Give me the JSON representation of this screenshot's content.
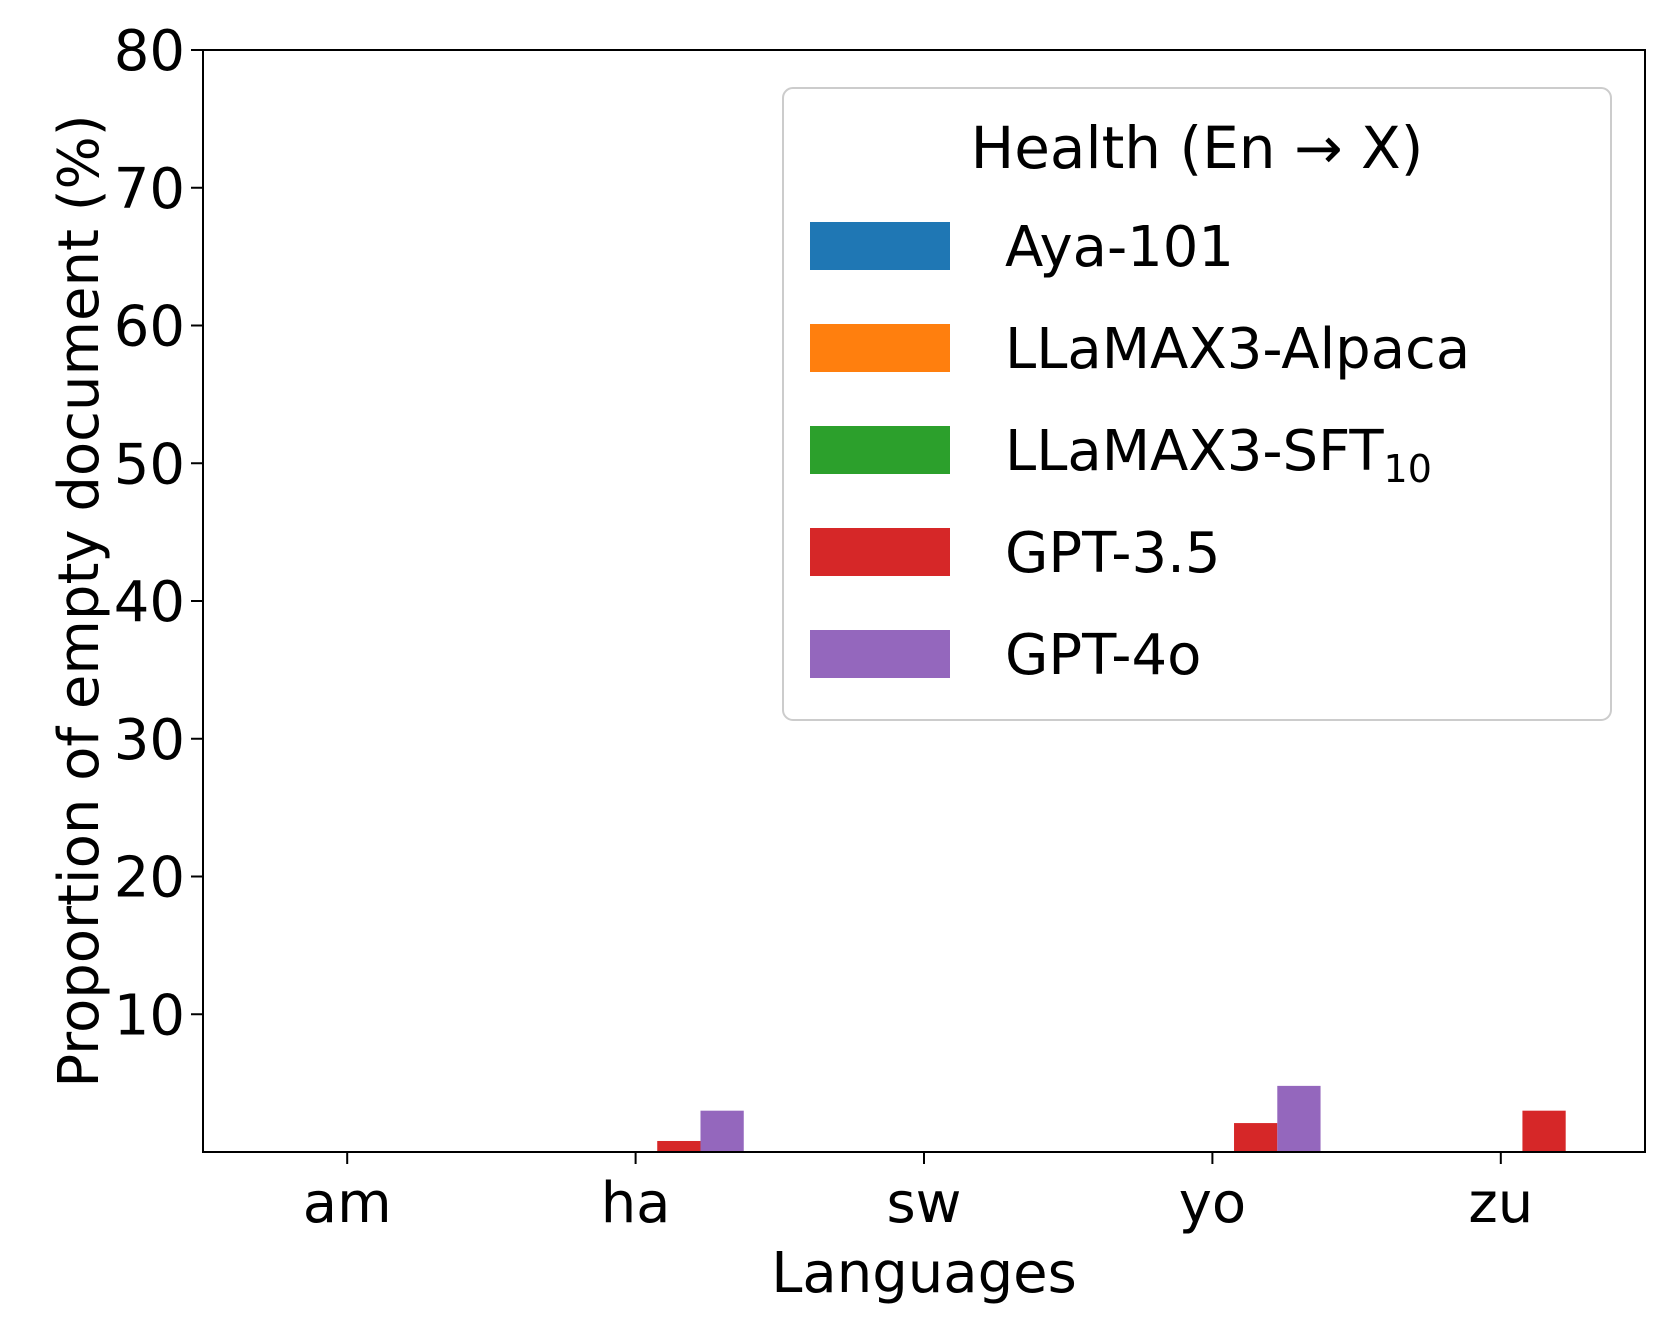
{
  "chart_data": {
    "type": "bar",
    "title": "",
    "xlabel": "Languages",
    "ylabel": "Proportion of empty document (%)",
    "ylim": [
      0,
      80
    ],
    "yticks": [
      10,
      20,
      30,
      40,
      50,
      60,
      70,
      80
    ],
    "categories": [
      "am",
      "ha",
      "sw",
      "yo",
      "zu"
    ],
    "grid": false,
    "legend": {
      "title": "Health (En → X)",
      "placement": "top-right"
    },
    "series": [
      {
        "name": "Aya-101",
        "label_main": "Aya-101",
        "label_sub": "",
        "color": "#1f77b4",
        "values": [
          0,
          0,
          0,
          0,
          0
        ]
      },
      {
        "name": "LLaMAX3-Alpaca",
        "label_main": "LLaMAX3-Alpaca",
        "label_sub": "",
        "color": "#ff7f0e",
        "values": [
          0,
          0,
          0,
          0,
          0
        ]
      },
      {
        "name": "LLaMAX3-SFT10",
        "label_main": "LLaMAX3-SFT",
        "label_sub": "10",
        "color": "#2ca02c",
        "values": [
          0,
          0,
          0,
          0,
          0
        ]
      },
      {
        "name": "GPT-3.5",
        "label_main": "GPT-3.5",
        "label_sub": "",
        "color": "#d62728",
        "values": [
          0,
          0.8,
          0,
          2.1,
          3.0
        ]
      },
      {
        "name": "GPT-4o",
        "label_main": "GPT-4o",
        "label_sub": "",
        "color": "#9467bd",
        "values": [
          0,
          3.0,
          0,
          4.8,
          0
        ]
      }
    ]
  }
}
